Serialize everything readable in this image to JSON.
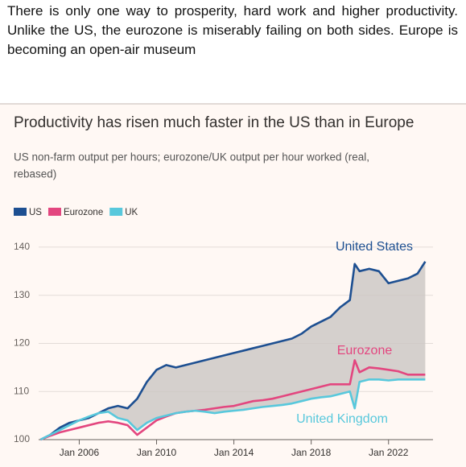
{
  "post": {
    "text": "There is only one way to prosperity, hard work and higher productivity. Unlike the US, the eurozone is miserably failing on both sides. Europe is becoming an open-air museum"
  },
  "chart_data": {
    "type": "line",
    "title": "Productivity has risen much faster in the US than in Europe",
    "subtitle": [
      "US non-farm output per hours; eurozone/UK output per hour worked (real,",
      "rebased)"
    ],
    "x": [
      2004,
      2004.5,
      2005,
      2005.5,
      2006,
      2006.5,
      2007,
      2007.5,
      2008,
      2008.5,
      2009,
      2009.5,
      2010,
      2010.5,
      2011,
      2011.5,
      2012,
      2012.5,
      2013,
      2013.5,
      2014,
      2014.5,
      2015,
      2015.5,
      2016,
      2016.5,
      2017,
      2017.5,
      2018,
      2018.5,
      2019,
      2019.5,
      2020,
      2020.25,
      2020.5,
      2021,
      2021.5,
      2022,
      2022.5,
      2023,
      2023.5,
      2023.9
    ],
    "series": [
      {
        "name": "US",
        "label": "United States",
        "color": "#1d4f91",
        "values": [
          100,
          101,
          102.5,
          103.5,
          104,
          104.5,
          105.5,
          106.5,
          107,
          106.5,
          108.5,
          112,
          114.5,
          115.5,
          115,
          115.5,
          116,
          116.5,
          117,
          117.5,
          118,
          118.5,
          119,
          119.5,
          120,
          120.5,
          121,
          122,
          123.5,
          124.5,
          125.5,
          127.5,
          129,
          136.5,
          135,
          135.5,
          135,
          132.5,
          133,
          133.5,
          134.5,
          137
        ]
      },
      {
        "name": "Eurozone",
        "label": "Eurozone",
        "color": "#e3467f",
        "values": [
          100,
          100.8,
          101.5,
          102,
          102.5,
          103,
          103.5,
          103.8,
          103.5,
          103,
          101,
          102.5,
          104,
          104.8,
          105.5,
          105.8,
          106,
          106.2,
          106.5,
          106.8,
          107,
          107.5,
          108,
          108.2,
          108.5,
          109,
          109.5,
          110,
          110.5,
          111,
          111.5,
          111.5,
          111.5,
          116.5,
          114,
          115,
          114.8,
          114.5,
          114.2,
          113.5,
          113.5,
          113.5
        ]
      },
      {
        "name": "UK",
        "label": "United Kingdom",
        "color": "#58c8dc",
        "values": [
          100,
          101,
          102,
          103,
          104,
          104.8,
          105.5,
          105.8,
          104.5,
          104,
          102,
          103.5,
          104.5,
          105,
          105.5,
          105.8,
          106,
          105.8,
          105.5,
          105.8,
          106,
          106.2,
          106.5,
          106.8,
          107,
          107.2,
          107.5,
          108,
          108.5,
          108.8,
          109,
          109.5,
          110,
          106.5,
          112,
          112.5,
          112.5,
          112.3,
          112.5,
          112.5,
          112.5,
          112.5
        ]
      }
    ],
    "fill_between": {
      "series": [
        "US",
        "UK"
      ],
      "color": "#cbc5c3"
    },
    "xlim": [
      2003.9,
      2024.3
    ],
    "xticks": [
      {
        "value": 2006,
        "label": "Jan 2006"
      },
      {
        "value": 2010,
        "label": "Jan 2010"
      },
      {
        "value": 2014,
        "label": "Jan 2014"
      },
      {
        "value": 2018,
        "label": "Jan 2018"
      },
      {
        "value": 2022,
        "label": "Jan 2022"
      }
    ],
    "ylim": [
      100,
      143
    ],
    "yticks": [
      100,
      110,
      120,
      130,
      140
    ],
    "grid": true,
    "legend": "top-left"
  }
}
